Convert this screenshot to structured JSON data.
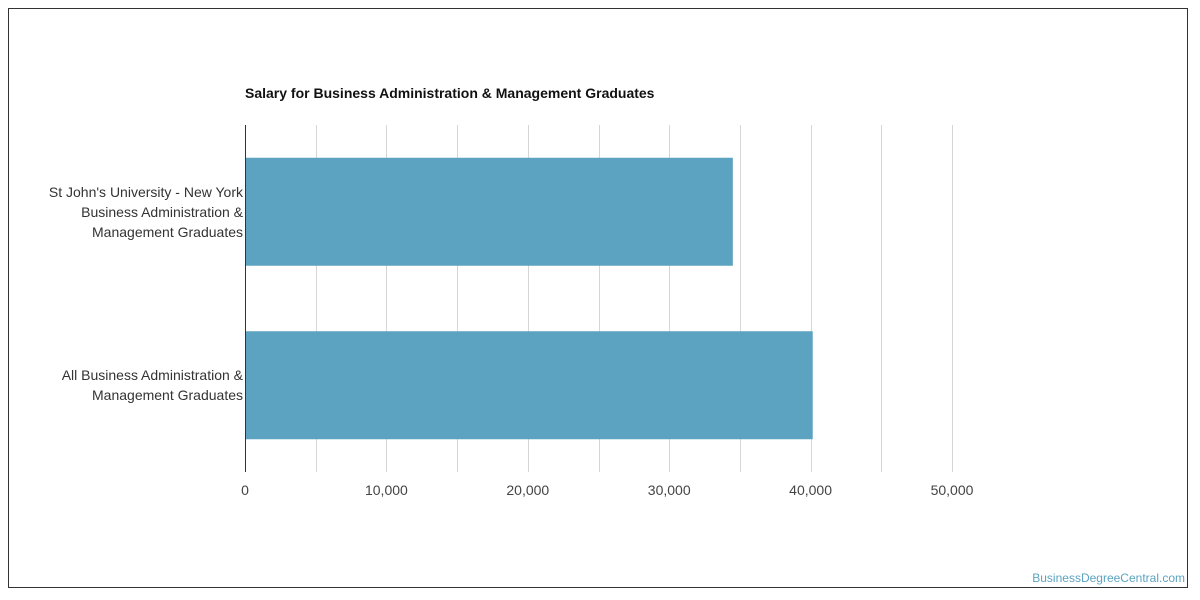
{
  "chart_data": {
    "type": "bar",
    "orientation": "horizontal",
    "title": "Salary for Business Administration & Management Graduates",
    "categories": [
      "St John's University - New York Business Administration & Management Graduates",
      "All Business Administration & Management Graduates"
    ],
    "category_lines": [
      [
        "St John's University - New York",
        "Business Administration &",
        "Management Graduates"
      ],
      [
        "All Business Administration &",
        "Management Graduates"
      ]
    ],
    "values": [
      34500,
      40150
    ],
    "xlim": [
      0,
      50000
    ],
    "xticks": [
      0,
      10000,
      20000,
      30000,
      40000,
      50000
    ],
    "xtick_labels": [
      "0",
      "10,000",
      "20,000",
      "30,000",
      "40,000",
      "50,000"
    ],
    "grid": true,
    "bar_color": "#5ba3c0",
    "xlabel": "",
    "ylabel": ""
  },
  "watermark": "BusinessDegreeCentral.com"
}
